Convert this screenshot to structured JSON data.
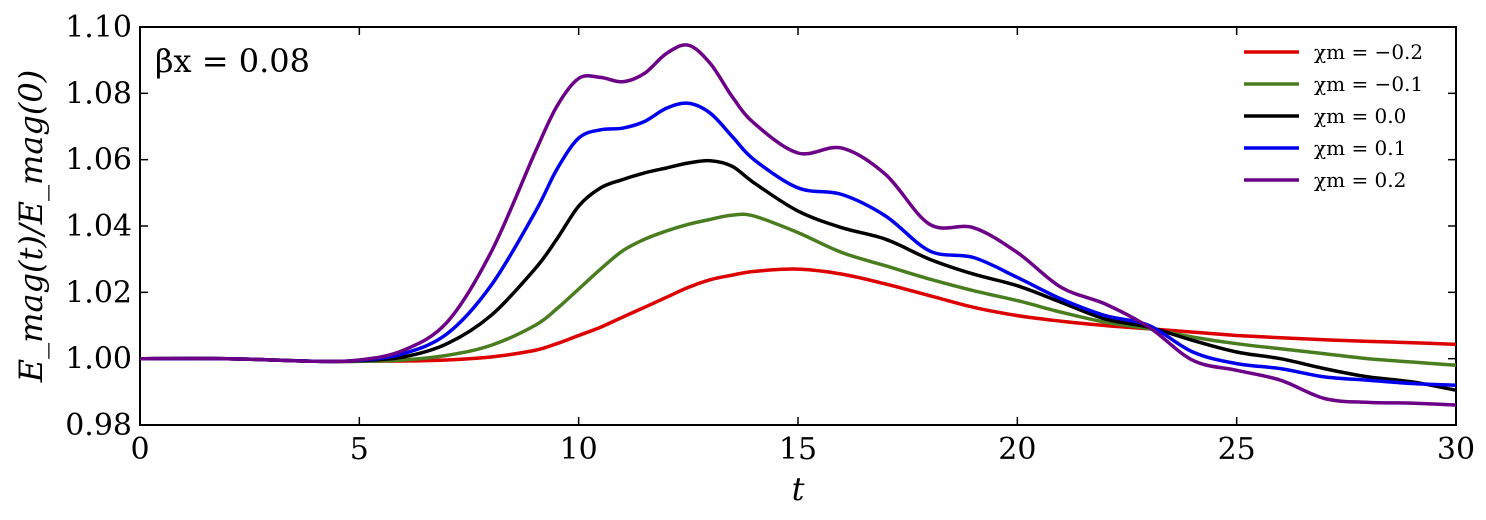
{
  "chart_data": {
    "type": "line",
    "xlabel": "t",
    "ylabel": "E_mag(t)/E_mag(0)",
    "xlim": [
      0,
      30
    ],
    "ylim": [
      0.98,
      1.1
    ],
    "xticks": [
      "0",
      "5",
      "10",
      "15",
      "20",
      "25",
      "30"
    ],
    "yticks": [
      "0.98",
      "1.00",
      "1.02",
      "1.04",
      "1.06",
      "1.08",
      "1.10"
    ],
    "annotation": "βx = 0.08",
    "grid": false,
    "legend_position": "top-right",
    "x": [
      0,
      2,
      4,
      5,
      6,
      7,
      8,
      9,
      9.5,
      10,
      10.5,
      11,
      11.5,
      12,
      12.5,
      13,
      13.5,
      14,
      15,
      16,
      17,
      18,
      19,
      20,
      21,
      22,
      23,
      24,
      25,
      26,
      27,
      28,
      29,
      30
    ],
    "series": [
      {
        "name": "χm = −0.2",
        "color": "#dd0000",
        "values": [
          1.0,
          1.0,
          0.9992,
          0.9992,
          0.9993,
          0.9996,
          1.0005,
          1.0025,
          1.0045,
          1.007,
          1.0095,
          1.0125,
          1.0155,
          1.0185,
          1.0215,
          1.0238,
          1.0252,
          1.0263,
          1.027,
          1.0255,
          1.0225,
          1.019,
          1.0155,
          1.013,
          1.0113,
          1.01,
          1.009,
          1.008,
          1.007,
          1.0063,
          1.0057,
          1.0052,
          1.0048,
          1.0043
        ]
      },
      {
        "name": "χm = −0.1",
        "color": "#4a7d20",
        "values": [
          1.0,
          1.0,
          0.9992,
          0.9992,
          0.9996,
          1.001,
          1.004,
          1.01,
          1.015,
          1.021,
          1.027,
          1.0325,
          1.036,
          1.0385,
          1.0405,
          1.042,
          1.0433,
          1.043,
          1.038,
          1.032,
          1.028,
          1.024,
          1.0205,
          1.0175,
          1.014,
          1.011,
          1.009,
          1.0065,
          1.0045,
          1.003,
          1.0015,
          1.0,
          0.999,
          0.998
        ]
      },
      {
        "name": "χm = 0.0",
        "color": "#000000",
        "values": [
          1.0,
          1.0,
          0.9992,
          0.9994,
          1.0005,
          1.0045,
          1.013,
          1.027,
          1.036,
          1.046,
          1.0515,
          1.054,
          1.056,
          1.0575,
          1.059,
          1.0597,
          1.058,
          1.053,
          1.0445,
          1.0395,
          1.036,
          1.03,
          1.0255,
          1.022,
          1.017,
          1.012,
          1.0095,
          1.0055,
          1.002,
          1.0,
          0.997,
          0.9945,
          0.993,
          0.9905
        ]
      },
      {
        "name": "χm = 0.1",
        "color": "#0000ee",
        "values": [
          1.0,
          1.0,
          0.9992,
          0.9995,
          1.0015,
          1.0075,
          1.022,
          1.044,
          1.057,
          1.0665,
          1.069,
          1.0695,
          1.0715,
          1.0755,
          1.077,
          1.074,
          1.067,
          1.06,
          1.0515,
          1.0495,
          1.043,
          1.0325,
          1.0305,
          1.0245,
          1.018,
          1.013,
          1.01,
          1.002,
          0.9985,
          0.997,
          0.9945,
          0.9935,
          0.9925,
          0.992
        ]
      },
      {
        "name": "χm = 0.2",
        "color": "#6c0087",
        "values": [
          1.0,
          1.0,
          0.9992,
          0.9996,
          1.0025,
          1.011,
          1.032,
          1.062,
          1.076,
          1.0845,
          1.0848,
          1.0835,
          1.086,
          1.092,
          1.0945,
          1.089,
          1.079,
          1.071,
          1.062,
          1.0635,
          1.0555,
          1.0405,
          1.0395,
          1.032,
          1.0215,
          1.0165,
          1.0095,
          0.9995,
          0.9965,
          0.9935,
          0.988,
          0.9868,
          0.9866,
          0.986
        ]
      }
    ]
  }
}
